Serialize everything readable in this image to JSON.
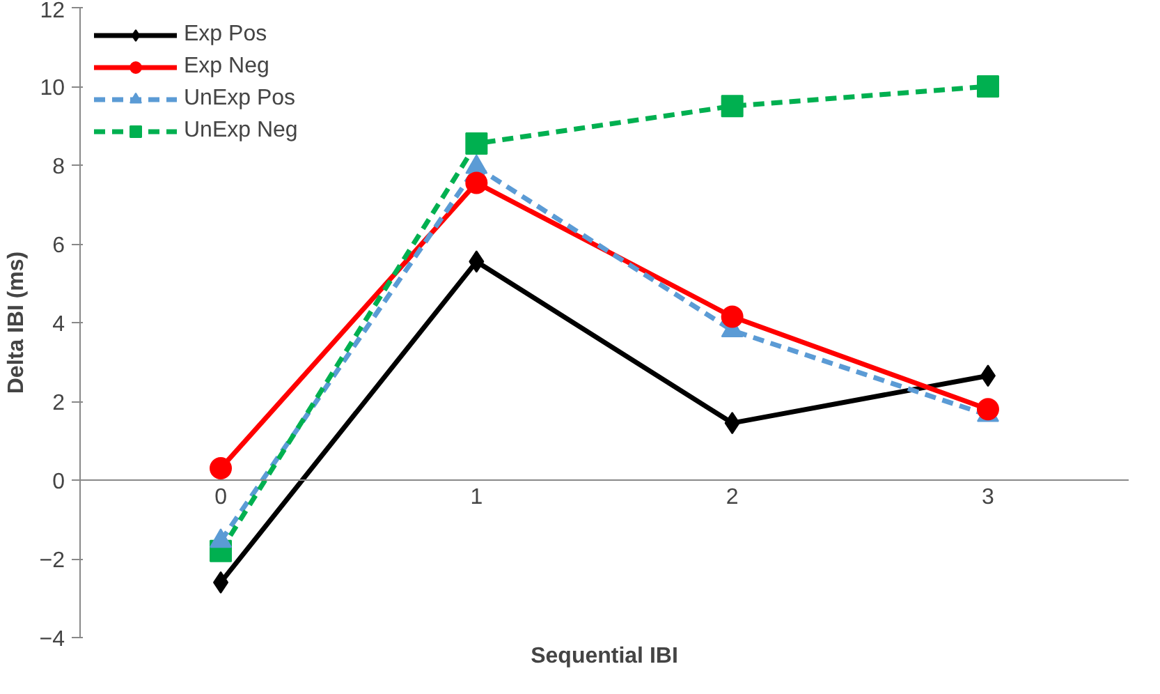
{
  "chart_data": {
    "type": "line",
    "xlabel": "Sequential IBI",
    "ylabel": "Delta IBI (ms)",
    "categories": [
      "0",
      "1",
      "2",
      "3"
    ],
    "ylim": [
      -4,
      12
    ],
    "yticks": [
      -4,
      -2,
      0,
      2,
      4,
      6,
      8,
      10,
      12
    ],
    "grid": false,
    "legend": "top left",
    "series": [
      {
        "name": "Exp Pos",
        "color": "#000000",
        "marker": "diamond",
        "line_style": "solid",
        "values": [
          -2.6,
          5.55,
          1.45,
          2.65
        ]
      },
      {
        "name": "Exp Neg",
        "color": "#ff0000",
        "marker": "circle",
        "line_style": "solid",
        "values": [
          0.3,
          7.55,
          4.15,
          1.8
        ]
      },
      {
        "name": "UnExp Pos",
        "color": "#5b9bd5",
        "marker": "triangle",
        "line_style": "dashed",
        "values": [
          -1.55,
          7.95,
          3.8,
          1.65
        ]
      },
      {
        "name": "UnExp Neg",
        "color": "#00b050",
        "marker": "square",
        "line_style": "dashed",
        "values": [
          -1.8,
          8.55,
          9.5,
          10.0
        ]
      }
    ]
  }
}
